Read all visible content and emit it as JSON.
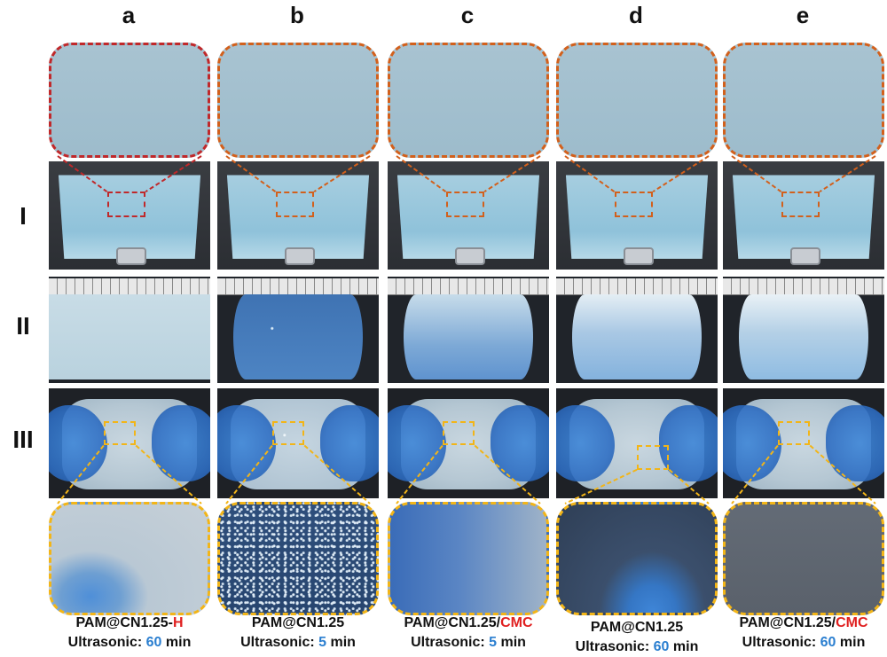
{
  "columns": [
    {
      "letter": "a",
      "material": "PAM@CN1.25-",
      "suffix": "H",
      "time_label": "Ultrasonic: ",
      "time_value": "60",
      "time_unit": " min",
      "bottom_tone": "clear"
    },
    {
      "letter": "b",
      "material": "PAM@CN1.25",
      "suffix": "",
      "time_label": "Ultrasonic: ",
      "time_value": "5",
      "time_unit": " min",
      "bottom_tone": "speckled"
    },
    {
      "letter": "c",
      "material": "PAM@CN1.25/",
      "suffix": "CMC",
      "time_label": "Ultrasonic: ",
      "time_value": "5",
      "time_unit": " min",
      "bottom_tone": "hazy"
    },
    {
      "letter": "d",
      "material": "PAM@CN1.25",
      "suffix": "",
      "time_label": "Ultrasonic: ",
      "time_value": "60",
      "time_unit": " min",
      "bottom_tone": "dark"
    },
    {
      "letter": "e",
      "material": "PAM@CN1.25/",
      "suffix": "CMC",
      "time_label": "Ultrasonic: ",
      "time_value": "60",
      "time_unit": " min",
      "bottom_tone": "grey"
    }
  ],
  "rows": [
    {
      "label": "I"
    },
    {
      "label": "II"
    },
    {
      "label": "III"
    }
  ],
  "colors": {
    "zoom_top_border_first": "#c0282a",
    "zoom_top_border": "#d2601c",
    "zoom_bottom_border": "#f2b518",
    "highlight_red": "#e02020",
    "highlight_blue": "#2b7fd0"
  }
}
